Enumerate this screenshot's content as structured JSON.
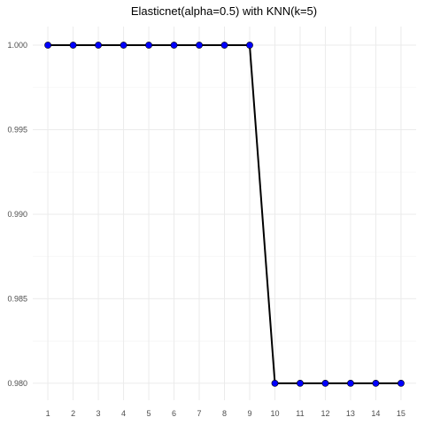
{
  "chart_data": {
    "type": "line",
    "title": "Elasticnet(alpha=0.5) with KNN(k=5)",
    "xlabel": "",
    "ylabel": "",
    "x": [
      1,
      2,
      3,
      4,
      5,
      6,
      7,
      8,
      9,
      10,
      11,
      12,
      13,
      14,
      15
    ],
    "series": [
      {
        "values": [
          1.0,
          1.0,
          1.0,
          1.0,
          1.0,
          1.0,
          1.0,
          1.0,
          1.0,
          0.98,
          0.98,
          0.98,
          0.98,
          0.98,
          0.98
        ]
      }
    ],
    "xlim": [
      0.4,
      15.6
    ],
    "ylim": [
      0.979,
      1.0011
    ],
    "xticks": [
      1,
      2,
      3,
      4,
      5,
      6,
      7,
      8,
      9,
      10,
      11,
      12,
      13,
      14,
      15
    ],
    "yticks": [
      0.98,
      0.985,
      0.99,
      0.995,
      1.0
    ],
    "ytick_labels": [
      "0.980",
      "0.985",
      "0.990",
      "0.995",
      "1.000"
    ],
    "grid": true,
    "colors": {
      "line": "#000000",
      "point": "#0000ff",
      "grid_major": "#ebebeb",
      "grid_minor": "#f5f5f5"
    }
  }
}
